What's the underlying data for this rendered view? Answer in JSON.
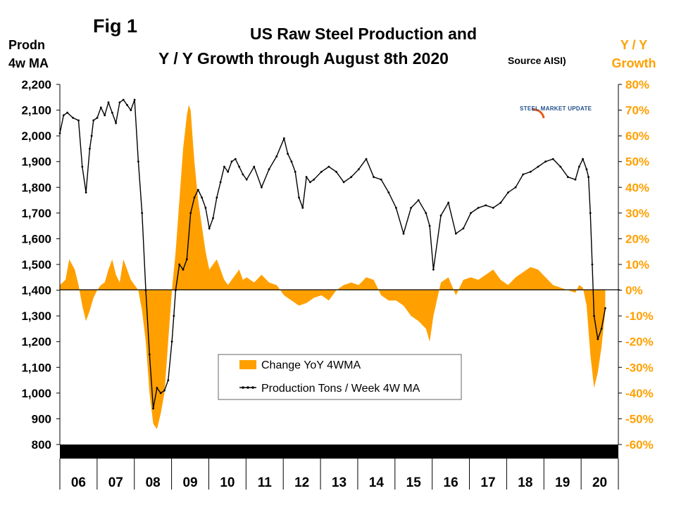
{
  "fig_label": "Fig 1",
  "title_line1": "US Raw Steel Production and",
  "title_line2": "Y / Y Growth through August 8th 2020",
  "source_note": "Source AISI)",
  "left_axis_label": [
    "Prodn",
    "4w MA"
  ],
  "right_axis_label": [
    "Y / Y",
    "Growth"
  ],
  "logo_text": "STEEL MARKET UPDATE",
  "colors": {
    "growth": "#FFA000",
    "production": "#000000",
    "right_axis_text": "#FFA000",
    "zero_line": "#000000"
  },
  "chart_data": {
    "type": "line",
    "x_years": [
      "06",
      "07",
      "08",
      "09",
      "10",
      "11",
      "12",
      "13",
      "14",
      "15",
      "16",
      "17",
      "18",
      "19",
      "20"
    ],
    "y_left": {
      "label": "Prodn 4w MA",
      "min": 800,
      "max": 2200,
      "ticks": [
        "800",
        "900",
        "1,000",
        "1,100",
        "1,200",
        "1,300",
        "1,400",
        "1,500",
        "1,600",
        "1,700",
        "1,800",
        "1,900",
        "2,000",
        "2,100",
        "2,200"
      ]
    },
    "y_right": {
      "label": "Y / Y Growth",
      "min": -60,
      "max": 80,
      "ticks": [
        "-60%",
        "-50%",
        "-40%",
        "-30%",
        "-20%",
        "-10%",
        "0%",
        "10%",
        "20%",
        "30%",
        "40%",
        "50%",
        "60%",
        "70%",
        "80%"
      ]
    },
    "legend": [
      "Change YoY 4WMA",
      "Production Tons / Week 4W MA"
    ],
    "series": [
      {
        "name": "Production Tons / Week 4W MA",
        "kind": "line",
        "axis": "left",
        "x": [
          2006.0,
          2006.1,
          2006.2,
          2006.35,
          2006.5,
          2006.6,
          2006.7,
          2006.8,
          2006.85,
          2006.9,
          2007.0,
          2007.1,
          2007.2,
          2007.3,
          2007.4,
          2007.5,
          2007.6,
          2007.7,
          2007.8,
          2007.9,
          2008.0,
          2008.1,
          2008.2,
          2008.3,
          2008.4,
          2008.5,
          2008.6,
          2008.7,
          2008.8,
          2008.9,
          2009.0,
          2009.05,
          2009.1,
          2009.2,
          2009.3,
          2009.4,
          2009.5,
          2009.6,
          2009.7,
          2009.8,
          2009.9,
          2010.0,
          2010.1,
          2010.2,
          2010.3,
          2010.4,
          2010.5,
          2010.6,
          2010.7,
          2010.8,
          2010.9,
          2011.0,
          2011.2,
          2011.4,
          2011.6,
          2011.8,
          2012.0,
          2012.1,
          2012.2,
          2012.3,
          2012.4,
          2012.5,
          2012.6,
          2012.7,
          2012.8,
          2013.0,
          2013.2,
          2013.4,
          2013.6,
          2013.8,
          2014.0,
          2014.2,
          2014.4,
          2014.6,
          2014.8,
          2015.0,
          2015.2,
          2015.4,
          2015.6,
          2015.8,
          2015.9,
          2016.0,
          2016.2,
          2016.4,
          2016.6,
          2016.8,
          2017.0,
          2017.2,
          2017.4,
          2017.6,
          2017.8,
          2018.0,
          2018.2,
          2018.4,
          2018.6,
          2018.8,
          2019.0,
          2019.2,
          2019.4,
          2019.6,
          2019.8,
          2019.9,
          2020.0,
          2020.1,
          2020.15,
          2020.2,
          2020.25,
          2020.3,
          2020.4,
          2020.5,
          2020.6
        ],
        "y": [
          2010,
          2080,
          2090,
          2070,
          2060,
          1880,
          1780,
          1950,
          2000,
          2060,
          2070,
          2110,
          2080,
          2130,
          2090,
          2050,
          2130,
          2140,
          2120,
          2100,
          2140,
          1900,
          1700,
          1400,
          1150,
          940,
          1020,
          1000,
          1010,
          1050,
          1200,
          1300,
          1400,
          1500,
          1480,
          1520,
          1700,
          1760,
          1790,
          1760,
          1720,
          1640,
          1680,
          1760,
          1820,
          1880,
          1860,
          1900,
          1910,
          1880,
          1850,
          1830,
          1880,
          1800,
          1870,
          1920,
          1990,
          1930,
          1900,
          1860,
          1760,
          1720,
          1840,
          1820,
          1830,
          1860,
          1880,
          1860,
          1820,
          1840,
          1870,
          1910,
          1840,
          1830,
          1780,
          1720,
          1620,
          1720,
          1750,
          1700,
          1650,
          1480,
          1690,
          1740,
          1620,
          1640,
          1700,
          1720,
          1730,
          1720,
          1740,
          1780,
          1800,
          1850,
          1860,
          1880,
          1900,
          1910,
          1880,
          1840,
          1830,
          1880,
          1910,
          1870,
          1840,
          1700,
          1500,
          1300,
          1210,
          1250,
          1330
        ]
      },
      {
        "name": "Change YoY 4WMA",
        "kind": "area",
        "axis": "right",
        "x": [
          2006.0,
          2006.15,
          2006.25,
          2006.4,
          2006.5,
          2006.6,
          2006.7,
          2006.8,
          2006.9,
          2007.0,
          2007.1,
          2007.2,
          2007.3,
          2007.4,
          2007.5,
          2007.6,
          2007.7,
          2007.8,
          2007.9,
          2008.0,
          2008.1,
          2008.2,
          2008.3,
          2008.4,
          2008.5,
          2008.6,
          2008.7,
          2008.8,
          2008.9,
          2009.0,
          2009.1,
          2009.2,
          2009.3,
          2009.4,
          2009.45,
          2009.5,
          2009.55,
          2009.6,
          2009.7,
          2009.8,
          2009.9,
          2010.0,
          2010.1,
          2010.2,
          2010.3,
          2010.4,
          2010.5,
          2010.6,
          2010.7,
          2010.8,
          2010.9,
          2011.0,
          2011.2,
          2011.4,
          2011.6,
          2011.8,
          2012.0,
          2012.2,
          2012.4,
          2012.6,
          2012.8,
          2013.0,
          2013.2,
          2013.4,
          2013.6,
          2013.8,
          2014.0,
          2014.2,
          2014.4,
          2014.6,
          2014.8,
          2015.0,
          2015.2,
          2015.4,
          2015.6,
          2015.8,
          2015.9,
          2016.0,
          2016.2,
          2016.4,
          2016.6,
          2016.8,
          2017.0,
          2017.2,
          2017.4,
          2017.6,
          2017.8,
          2018.0,
          2018.2,
          2018.4,
          2018.6,
          2018.8,
          2019.0,
          2019.2,
          2019.4,
          2019.6,
          2019.8,
          2019.9,
          2020.0,
          2020.1,
          2020.2,
          2020.3,
          2020.4,
          2020.5,
          2020.6
        ],
        "y": [
          2,
          4,
          12,
          8,
          2,
          -6,
          -12,
          -8,
          -3,
          0,
          2,
          3,
          8,
          12,
          6,
          3,
          12,
          8,
          4,
          2,
          0,
          -8,
          -20,
          -40,
          -52,
          -54,
          -48,
          -40,
          -20,
          0,
          15,
          35,
          55,
          68,
          72,
          70,
          60,
          50,
          35,
          25,
          15,
          8,
          10,
          12,
          8,
          4,
          2,
          4,
          6,
          8,
          4,
          5,
          3,
          6,
          3,
          2,
          -2,
          -4,
          -6,
          -5,
          -3,
          -2,
          -4,
          0,
          2,
          3,
          2,
          5,
          4,
          -2,
          -4,
          -4,
          -6,
          -10,
          -12,
          -15,
          -20,
          -10,
          3,
          5,
          -2,
          4,
          5,
          4,
          6,
          8,
          4,
          2,
          5,
          7,
          9,
          8,
          5,
          2,
          1,
          0,
          -1,
          2,
          1,
          -6,
          -25,
          -38,
          -32,
          -22,
          -8
        ]
      }
    ]
  }
}
